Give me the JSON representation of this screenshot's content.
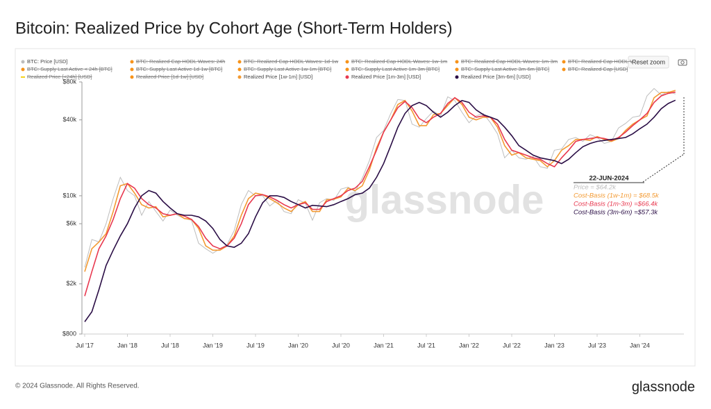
{
  "chart_data": {
    "type": "line",
    "title": "Bitcoin: Realized Price by Cohort Age (Short-Term Holders)",
    "footer": "© 2024 Glassnode. All Rights Reserved.",
    "logo": "glassnode",
    "watermark": "glassnode",
    "reset_button": "Reset zoom",
    "log_scale": true,
    "x": [
      "2017-07",
      "2017-08",
      "2017-09",
      "2017-10",
      "2017-11",
      "2017-12",
      "2018-01",
      "2018-02",
      "2018-03",
      "2018-04",
      "2018-05",
      "2018-06",
      "2018-07",
      "2018-08",
      "2018-09",
      "2018-10",
      "2018-11",
      "2018-12",
      "2019-01",
      "2019-02",
      "2019-03",
      "2019-04",
      "2019-05",
      "2019-06",
      "2019-07",
      "2019-08",
      "2019-09",
      "2019-10",
      "2019-11",
      "2019-12",
      "2020-01",
      "2020-02",
      "2020-03",
      "2020-04",
      "2020-05",
      "2020-06",
      "2020-07",
      "2020-08",
      "2020-09",
      "2020-10",
      "2020-11",
      "2020-12",
      "2021-01",
      "2021-02",
      "2021-03",
      "2021-04",
      "2021-05",
      "2021-06",
      "2021-07",
      "2021-08",
      "2021-09",
      "2021-10",
      "2021-11",
      "2021-12",
      "2022-01",
      "2022-02",
      "2022-03",
      "2022-04",
      "2022-05",
      "2022-06",
      "2022-07",
      "2022-08",
      "2022-09",
      "2022-10",
      "2022-11",
      "2022-12",
      "2023-01",
      "2023-02",
      "2023-03",
      "2023-04",
      "2023-05",
      "2023-06",
      "2023-07",
      "2023-08",
      "2023-09",
      "2023-10",
      "2023-11",
      "2023-12",
      "2024-01",
      "2024-02",
      "2024-03",
      "2024-04",
      "2024-05",
      "2024-06"
    ],
    "xlim": [
      "2017-07",
      "2024-07"
    ],
    "xticks": [
      {
        "value": "2017-07",
        "label": "Jul '17"
      },
      {
        "value": "2018-01",
        "label": "Jan '18"
      },
      {
        "value": "2018-07",
        "label": "Jul '18"
      },
      {
        "value": "2019-01",
        "label": "Jan '19"
      },
      {
        "value": "2019-07",
        "label": "Jul '19"
      },
      {
        "value": "2020-01",
        "label": "Jan '20"
      },
      {
        "value": "2020-07",
        "label": "Jul '20"
      },
      {
        "value": "2021-01",
        "label": "Jan '21"
      },
      {
        "value": "2021-07",
        "label": "Jul '21"
      },
      {
        "value": "2022-01",
        "label": "Jan '22"
      },
      {
        "value": "2022-07",
        "label": "Jul '22"
      },
      {
        "value": "2023-01",
        "label": "Jan '23"
      },
      {
        "value": "2023-07",
        "label": "Jul '23"
      },
      {
        "value": "2024-01",
        "label": "Jan '24"
      }
    ],
    "ylim": [
      800,
      80000
    ],
    "yticks": [
      {
        "value": 800,
        "label": "$800"
      },
      {
        "value": 2000,
        "label": "$2k"
      },
      {
        "value": 6000,
        "label": "$6k"
      },
      {
        "value": 10000,
        "label": "$10k"
      },
      {
        "value": 40000,
        "label": "$40k"
      },
      {
        "value": 80000,
        "label": "$80k"
      }
    ],
    "series": [
      {
        "name": "BTC: Price [USD]",
        "color": "#bdbdbd",
        "values": [
          2700,
          4500,
          4300,
          6000,
          9500,
          14000,
          11000,
          10000,
          7000,
          9000,
          7500,
          6300,
          7700,
          7000,
          6600,
          6400,
          4200,
          3800,
          3500,
          3800,
          4100,
          5300,
          8500,
          11000,
          10000,
          10000,
          8300,
          9200,
          7500,
          7200,
          9300,
          8700,
          6400,
          8800,
          9500,
          9200,
          11300,
          11700,
          10800,
          13800,
          19000,
          29000,
          33000,
          45000,
          58000,
          57000,
          37000,
          35000,
          41000,
          47000,
          43000,
          61000,
          57000,
          46000,
          38000,
          43000,
          45000,
          38000,
          31000,
          20000,
          23000,
          20000,
          19500,
          20500,
          17000,
          16500,
          23000,
          23500,
          28000,
          29000,
          27000,
          30500,
          29000,
          26000,
          27000,
          34500,
          37500,
          42000,
          43000,
          62000,
          71000,
          63000,
          67000,
          64200
        ]
      },
      {
        "name": "Realized Price [1w-1m] [USD]",
        "color": "#f39a32",
        "values": [
          2500,
          3800,
          4300,
          5000,
          7500,
          12000,
          12500,
          10500,
          8500,
          8000,
          8200,
          6800,
          7000,
          7200,
          6600,
          6500,
          5500,
          4000,
          3700,
          3700,
          4000,
          4800,
          7000,
          9500,
          10500,
          10200,
          9500,
          8800,
          8000,
          7500,
          8500,
          9000,
          7500,
          7500,
          9300,
          9400,
          9800,
          11500,
          11000,
          12000,
          16000,
          24000,
          32000,
          40000,
          53000,
          57000,
          47000,
          36000,
          36000,
          44000,
          45000,
          52000,
          60000,
          53000,
          42000,
          40000,
          42000,
          42000,
          35000,
          25000,
          21000,
          22000,
          20000,
          19500,
          19000,
          17000,
          19000,
          23000,
          25000,
          28000,
          28000,
          27500,
          29500,
          28000,
          27000,
          28500,
          33000,
          37000,
          40000,
          43000,
          60000,
          66000,
          66000,
          68500
        ]
      },
      {
        "name": "Realized Price [1m-3m] [USD]",
        "color": "#e8384f",
        "values": [
          1600,
          2500,
          3800,
          4800,
          6500,
          9500,
          12500,
          11500,
          9500,
          8500,
          8000,
          7200,
          7000,
          7200,
          6900,
          6500,
          5700,
          4600,
          4000,
          3800,
          4000,
          4600,
          6000,
          8500,
          10000,
          10200,
          9800,
          9200,
          8500,
          8000,
          8500,
          8800,
          7800,
          7800,
          9000,
          9500,
          10000,
          11000,
          11500,
          13000,
          17000,
          23000,
          32000,
          40000,
          50000,
          56000,
          50000,
          41000,
          38000,
          42000,
          45000,
          54000,
          60000,
          55000,
          46000,
          42000,
          43000,
          42000,
          37000,
          28000,
          23000,
          22000,
          21000,
          20000,
          19500,
          18000,
          17000,
          20000,
          23000,
          27000,
          28000,
          28500,
          29000,
          28500,
          27500,
          29000,
          32000,
          36000,
          40000,
          45000,
          55000,
          62000,
          65000,
          66400
        ]
      },
      {
        "name": "Realized Price [3m-6m] [USD]",
        "color": "#2a0d45",
        "values": [
          1000,
          1200,
          1800,
          2800,
          3700,
          4800,
          6000,
          8000,
          10000,
          11000,
          10500,
          9000,
          8000,
          7200,
          7000,
          7000,
          6800,
          6300,
          5500,
          4500,
          4000,
          3900,
          4200,
          5000,
          6800,
          8800,
          10000,
          10000,
          9700,
          9000,
          8500,
          8000,
          8400,
          8300,
          8200,
          8500,
          9000,
          9500,
          10200,
          10500,
          11500,
          14000,
          18000,
          25000,
          35000,
          45000,
          52000,
          55000,
          52000,
          46000,
          42000,
          46000,
          52000,
          57000,
          55000,
          48000,
          44000,
          42000,
          40000,
          35000,
          30000,
          25000,
          23000,
          21000,
          20000,
          19500,
          19000,
          18000,
          19500,
          22000,
          24500,
          26000,
          27000,
          27500,
          28000,
          28500,
          29000,
          31000,
          34000,
          37000,
          42000,
          49000,
          54000,
          57300
        ]
      }
    ],
    "hidden_series": [
      {
        "name": "BTC: Realized Cap HODL Waves: 24h",
        "color": "#f7931a"
      },
      {
        "name": "BTC: Realized Cap HODL Waves: 1d-1w",
        "color": "#f7931a"
      },
      {
        "name": "BTC: Realized Cap HODL Waves: 1w-1m",
        "color": "#f7931a"
      },
      {
        "name": "BTC: Realized Cap HODL Waves: 1m-3m",
        "color": "#f7931a"
      },
      {
        "name": "BTC: Realized Cap HODL V",
        "color": "#f7931a"
      },
      {
        "name": "BTC: Supply Last Active < 24h [BTC]",
        "color": "#f7931a"
      },
      {
        "name": "BTC: Supply Last Active 1d-1w [BTC]",
        "color": "#f7931a"
      },
      {
        "name": "BTC: Supply Last Active 1w-1m [BTC]",
        "color": "#f7931a"
      },
      {
        "name": "BTC: Supply Last Active 1m-3m [BTC]",
        "color": "#f7931a"
      },
      {
        "name": "BTC: Supply Last Active 3m-6m [BTC]",
        "color": "#f7931a"
      },
      {
        "name": "BTC: Realized Cap [USD]",
        "color": "#f7931a"
      },
      {
        "name": "Realized Price [<24h] [USD]",
        "color": "#f5d21a"
      },
      {
        "name": "Realized Price [1d-1w] [USD]",
        "color": "#f7931a"
      }
    ],
    "annotation": {
      "date": "22-JUN-2024",
      "lines": [
        {
          "text": "Price = $64.2k",
          "color": "#bdbdbd"
        },
        {
          "text": "Cost-Basis (1w-1m) = $68.5k",
          "color": "#f39a32"
        },
        {
          "text": "Cost-Basis (1m-3m) =$66.4k",
          "color": "#e8384f"
        },
        {
          "text": "Cost-Basis (3m-6m) =$57.3k",
          "color": "#2a0d45"
        }
      ]
    }
  }
}
